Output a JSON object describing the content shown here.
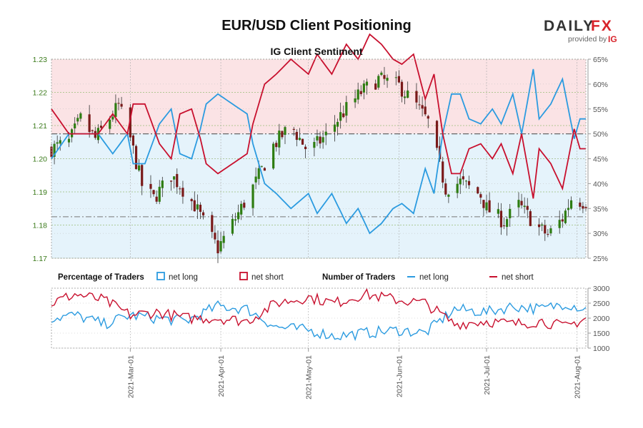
{
  "header": {
    "title": "EUR/USD Client Positioning",
    "subtitle": "IG Client Sentiment"
  },
  "brand": {
    "name_left": "DAILY",
    "name_right": "FX",
    "provided_by": "provided by",
    "ig": "IG",
    "accent_color": "#d8232a"
  },
  "legend": {
    "percentage_title": "Percentage of Traders",
    "pct_long_label": "net long",
    "pct_short_label": "net short",
    "number_title": "Number of Traders",
    "num_long_label": "net long",
    "num_short_label": "net short"
  },
  "colors": {
    "net_long": "#2b9be0",
    "net_short": "#c8102e",
    "long_fill": "#e5f3fb",
    "short_fill": "#fbe3e5",
    "candle_up": "#2e7d12",
    "candle_down": "#7a1a1a",
    "price_axis": "#3a7a1a"
  },
  "chart_data": [
    {
      "type": "candlestick+line",
      "title": "IG Client Sentiment",
      "price_axis": {
        "ticks": [
          "1.17",
          "1.18",
          "1.19",
          "1.20",
          "1.21",
          "1.22",
          "1.23"
        ],
        "ylim": [
          1.17,
          1.23
        ]
      },
      "percent_axis": {
        "ticks": [
          "25%",
          "30%",
          "35%",
          "40%",
          "45%",
          "50%",
          "55%",
          "60%",
          "65%"
        ],
        "ylim": [
          25,
          65
        ]
      },
      "reference_lines": {
        "percent_50": 50,
        "price_level": 1.1825
      },
      "x_range": [
        "2021-02-02",
        "2021-08-04"
      ],
      "price_anchors": [
        [
          "2021-02-02",
          1.203
        ],
        [
          "2021-02-08",
          1.205
        ],
        [
          "2021-02-12",
          1.212
        ],
        [
          "2021-02-17",
          1.206
        ],
        [
          "2021-02-25",
          1.216
        ],
        [
          "2021-03-01",
          1.206
        ],
        [
          "2021-03-05",
          1.192
        ],
        [
          "2021-03-09",
          1.188
        ],
        [
          "2021-03-15",
          1.195
        ],
        [
          "2021-03-18",
          1.192
        ],
        [
          "2021-03-23",
          1.186
        ],
        [
          "2021-03-29",
          1.176
        ],
        [
          "2021-03-31",
          1.173
        ],
        [
          "2021-04-06",
          1.182
        ],
        [
          "2021-04-13",
          1.193
        ],
        [
          "2021-04-19",
          1.204
        ],
        [
          "2021-04-25",
          1.21
        ],
        [
          "2021-05-01",
          1.202
        ],
        [
          "2021-05-07",
          1.207
        ],
        [
          "2021-05-12",
          1.213
        ],
        [
          "2021-05-19",
          1.22
        ],
        [
          "2021-05-25",
          1.224
        ],
        [
          "2021-06-01",
          1.222
        ],
        [
          "2021-06-07",
          1.216
        ],
        [
          "2021-06-11",
          1.211
        ],
        [
          "2021-06-17",
          1.191
        ],
        [
          "2021-06-22",
          1.193
        ],
        [
          "2021-06-29",
          1.189
        ],
        [
          "2021-07-01",
          1.185
        ],
        [
          "2021-07-07",
          1.181
        ],
        [
          "2021-07-12",
          1.186
        ],
        [
          "2021-07-19",
          1.179
        ],
        [
          "2021-07-22",
          1.177
        ],
        [
          "2021-07-27",
          1.182
        ],
        [
          "2021-07-30",
          1.188
        ],
        [
          "2021-08-03",
          1.187
        ]
      ],
      "net_long_pct_anchors": [
        [
          "2021-02-02",
          45
        ],
        [
          "2021-02-08",
          50
        ],
        [
          "2021-02-12",
          50
        ],
        [
          "2021-02-18",
          50
        ],
        [
          "2021-02-23",
          46
        ],
        [
          "2021-02-28",
          50
        ],
        [
          "2021-03-02",
          44
        ],
        [
          "2021-03-06",
          44
        ],
        [
          "2021-03-11",
          52
        ],
        [
          "2021-03-15",
          55
        ],
        [
          "2021-03-18",
          46
        ],
        [
          "2021-03-22",
          45
        ],
        [
          "2021-03-25",
          51
        ],
        [
          "2021-03-27",
          56
        ],
        [
          "2021-03-31",
          58
        ],
        [
          "2021-04-05",
          56
        ],
        [
          "2021-04-10",
          54
        ],
        [
          "2021-04-12",
          48
        ],
        [
          "2021-04-16",
          40
        ],
        [
          "2021-04-20",
          38
        ],
        [
          "2021-04-25",
          35
        ],
        [
          "2021-05-01",
          38
        ],
        [
          "2021-05-04",
          34
        ],
        [
          "2021-05-09",
          38
        ],
        [
          "2021-05-14",
          32
        ],
        [
          "2021-05-18",
          35
        ],
        [
          "2021-05-22",
          30
        ],
        [
          "2021-05-26",
          32
        ],
        [
          "2021-05-30",
          35
        ],
        [
          "2021-06-02",
          36
        ],
        [
          "2021-06-06",
          34
        ],
        [
          "2021-06-10",
          43
        ],
        [
          "2021-06-13",
          38
        ],
        [
          "2021-06-16",
          50
        ],
        [
          "2021-06-19",
          58
        ],
        [
          "2021-06-22",
          58
        ],
        [
          "2021-06-25",
          53
        ],
        [
          "2021-06-29",
          52
        ],
        [
          "2021-07-03",
          55
        ],
        [
          "2021-07-06",
          52
        ],
        [
          "2021-07-10",
          58
        ],
        [
          "2021-07-13",
          50
        ],
        [
          "2021-07-17",
          63
        ],
        [
          "2021-07-19",
          53
        ],
        [
          "2021-07-23",
          56
        ],
        [
          "2021-07-27",
          61
        ],
        [
          "2021-07-31",
          49
        ],
        [
          "2021-08-02",
          53
        ],
        [
          "2021-08-04",
          53
        ]
      ],
      "net_short_pct_anchors": [
        [
          "2021-02-02",
          55
        ],
        [
          "2021-02-08",
          50
        ],
        [
          "2021-02-12",
          50
        ],
        [
          "2021-02-18",
          50
        ],
        [
          "2021-02-23",
          54
        ],
        [
          "2021-02-28",
          50
        ],
        [
          "2021-03-02",
          56
        ],
        [
          "2021-03-06",
          56
        ],
        [
          "2021-03-11",
          48
        ],
        [
          "2021-03-15",
          45
        ],
        [
          "2021-03-18",
          54
        ],
        [
          "2021-03-22",
          55
        ],
        [
          "2021-03-25",
          49
        ],
        [
          "2021-03-27",
          44
        ],
        [
          "2021-03-31",
          42
        ],
        [
          "2021-04-05",
          44
        ],
        [
          "2021-04-10",
          46
        ],
        [
          "2021-04-12",
          52
        ],
        [
          "2021-04-16",
          60
        ],
        [
          "2021-04-20",
          62
        ],
        [
          "2021-04-25",
          65
        ],
        [
          "2021-05-01",
          62
        ],
        [
          "2021-05-04",
          66
        ],
        [
          "2021-05-09",
          62
        ],
        [
          "2021-05-14",
          68
        ],
        [
          "2021-05-18",
          65
        ],
        [
          "2021-05-22",
          70
        ],
        [
          "2021-05-26",
          68
        ],
        [
          "2021-05-30",
          65
        ],
        [
          "2021-06-02",
          64
        ],
        [
          "2021-06-06",
          66
        ],
        [
          "2021-06-10",
          57
        ],
        [
          "2021-06-13",
          62
        ],
        [
          "2021-06-16",
          50
        ],
        [
          "2021-06-19",
          42
        ],
        [
          "2021-06-22",
          42
        ],
        [
          "2021-06-25",
          47
        ],
        [
          "2021-06-29",
          48
        ],
        [
          "2021-07-03",
          45
        ],
        [
          "2021-07-06",
          48
        ],
        [
          "2021-07-10",
          42
        ],
        [
          "2021-07-13",
          50
        ],
        [
          "2021-07-17",
          37
        ],
        [
          "2021-07-19",
          47
        ],
        [
          "2021-07-23",
          44
        ],
        [
          "2021-07-27",
          39
        ],
        [
          "2021-07-31",
          51
        ],
        [
          "2021-08-02",
          47
        ],
        [
          "2021-08-04",
          47
        ]
      ]
    },
    {
      "type": "line",
      "title": "Number of Traders",
      "y_axis": {
        "ticks": [
          "1000",
          "1500",
          "2000",
          "2500",
          "3000"
        ],
        "ylim": [
          1000,
          3000
        ]
      },
      "x_ticks": [
        "2021-Mar-01",
        "2021-Apr-01",
        "2021-May-01",
        "2021-Jun-01",
        "2021-Jul-01",
        "2021-Aug-01"
      ],
      "series": [
        {
          "name": "net long",
          "anchors": [
            [
              "2021-02-02",
              2000
            ],
            [
              "2021-02-10",
              2100
            ],
            [
              "2021-02-20",
              1800
            ],
            [
              "2021-03-01",
              2100
            ],
            [
              "2021-03-10",
              2000
            ],
            [
              "2021-03-20",
              1900
            ],
            [
              "2021-03-31",
              2400
            ],
            [
              "2021-04-10",
              2300
            ],
            [
              "2021-04-20",
              1700
            ],
            [
              "2021-05-01",
              1600
            ],
            [
              "2021-05-10",
              1400
            ],
            [
              "2021-05-20",
              1500
            ],
            [
              "2021-06-01",
              1600
            ],
            [
              "2021-06-10",
              1500
            ],
            [
              "2021-06-20",
              2300
            ],
            [
              "2021-07-01",
              2200
            ],
            [
              "2021-07-10",
              2400
            ],
            [
              "2021-07-20",
              2300
            ],
            [
              "2021-07-28",
              2500
            ],
            [
              "2021-08-04",
              2300
            ]
          ]
        },
        {
          "name": "net short",
          "anchors": [
            [
              "2021-02-02",
              2500
            ],
            [
              "2021-02-10",
              2800
            ],
            [
              "2021-02-20",
              2600
            ],
            [
              "2021-03-01",
              2100
            ],
            [
              "2021-03-10",
              2200
            ],
            [
              "2021-03-20",
              2000
            ],
            [
              "2021-03-31",
              2000
            ],
            [
              "2021-04-10",
              1900
            ],
            [
              "2021-04-20",
              2500
            ],
            [
              "2021-05-01",
              2700
            ],
            [
              "2021-05-10",
              2500
            ],
            [
              "2021-05-20",
              2800
            ],
            [
              "2021-06-01",
              2600
            ],
            [
              "2021-06-10",
              2500
            ],
            [
              "2021-06-20",
              1800
            ],
            [
              "2021-07-01",
              1900
            ],
            [
              "2021-07-10",
              1800
            ],
            [
              "2021-07-20",
              1900
            ],
            [
              "2021-07-28",
              1700
            ],
            [
              "2021-08-04",
              2000
            ]
          ]
        }
      ]
    }
  ]
}
